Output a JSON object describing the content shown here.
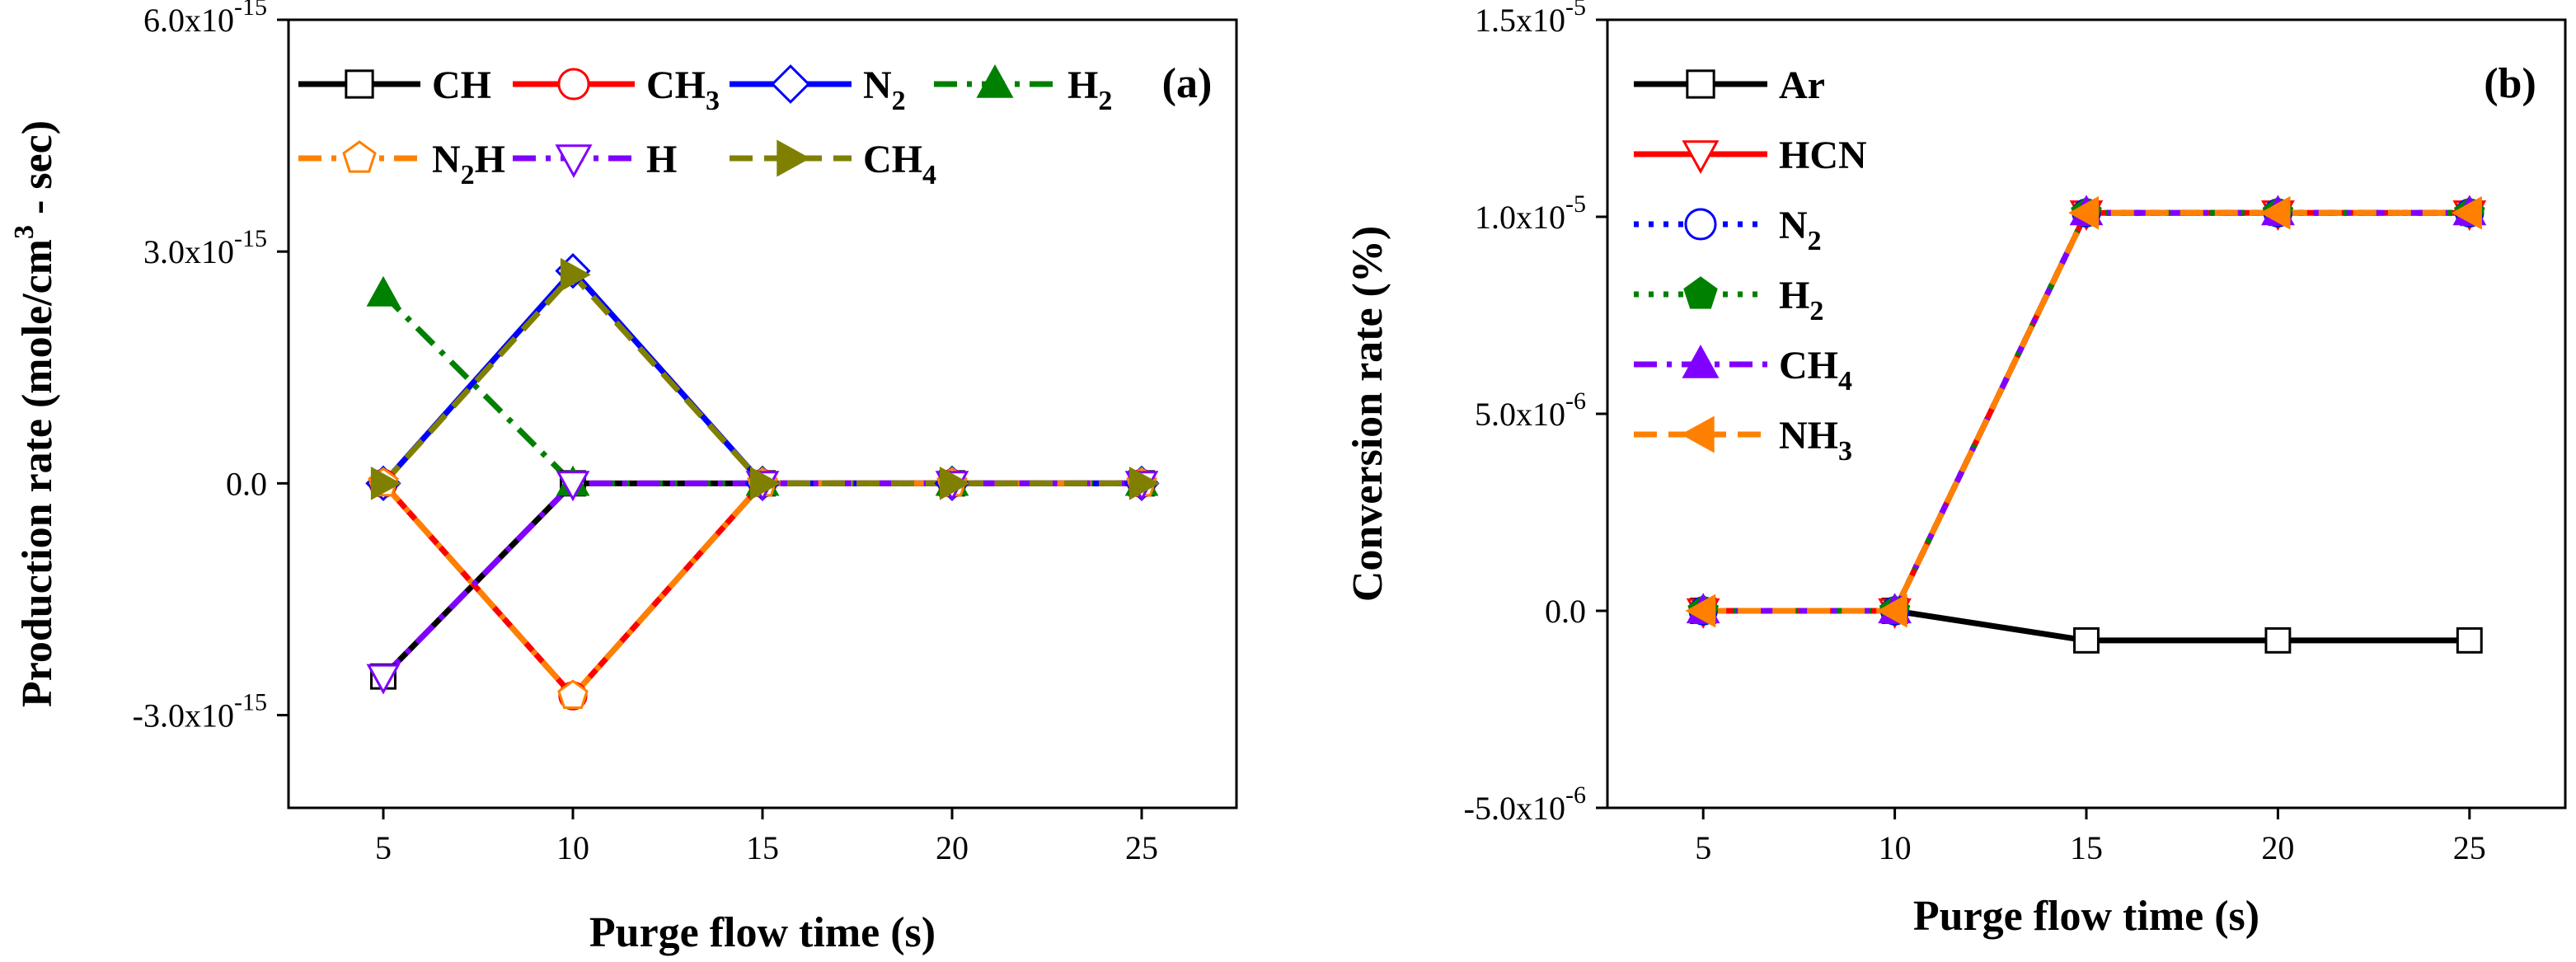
{
  "chart_data": [
    {
      "id": "a",
      "type": "line",
      "panel_label": "(a)",
      "xlabel": "Purge flow time (s)",
      "ylabel": "Production rate (mole/cm",
      "ylabel_sup": "3",
      "ylabel_end": " - sec)",
      "x": [
        5,
        10,
        15,
        20,
        25
      ],
      "xlim": [
        2.5,
        27.5
      ],
      "ylim": [
        -4.2e-15,
        6e-15
      ],
      "x_ticks": [
        5,
        10,
        15,
        20,
        25
      ],
      "x_tick_labels": [
        "5",
        "10",
        "15",
        "20",
        "25"
      ],
      "y_ticks": [
        -3e-15,
        0,
        3e-15,
        6e-15
      ],
      "y_tick_labels": [
        {
          "base": "-3.0x10",
          "exp": "-15"
        },
        {
          "base": "0.0",
          "exp": ""
        },
        {
          "base": "3.0x10",
          "exp": "-15"
        },
        {
          "base": "6.0x10",
          "exp": "-15"
        }
      ],
      "legend": {
        "position": "top",
        "columns": 4
      },
      "series": [
        {
          "name": "CH",
          "sub": "",
          "after": "",
          "values": [
            -2.5e-15,
            0,
            0,
            0,
            0
          ],
          "color": "#000000",
          "marker": "square",
          "dash": "solid",
          "filled": false
        },
        {
          "name": "CH",
          "sub": "3",
          "after": "",
          "values": [
            0,
            -2.75e-15,
            0,
            0,
            0
          ],
          "color": "#ff0000",
          "marker": "circle",
          "dash": "solid",
          "filled": false
        },
        {
          "name": "N",
          "sub": "2",
          "after": "",
          "values": [
            0,
            2.75e-15,
            0,
            0,
            0
          ],
          "color": "#0000ff",
          "marker": "diamond",
          "dash": "solid",
          "filled": false
        },
        {
          "name": "H",
          "sub": "2",
          "after": "",
          "values": [
            2.45e-15,
            0,
            0,
            0,
            0
          ],
          "color": "#008000",
          "marker": "triangle-up",
          "dash": "dashdot",
          "filled": true
        },
        {
          "name": "N",
          "sub": "2",
          "after": "H",
          "values": [
            0,
            -2.75e-15,
            0,
            0,
            0
          ],
          "color": "#ff8000",
          "marker": "pentagon",
          "dash": "dashdot",
          "filled": false
        },
        {
          "name": "H",
          "sub": "",
          "after": "",
          "values": [
            -2.5e-15,
            0,
            0,
            0,
            0
          ],
          "color": "#8000ff",
          "marker": "triangle-down",
          "dash": "dashdot",
          "filled": false
        },
        {
          "name": "CH",
          "sub": "4",
          "after": "",
          "values": [
            0,
            2.7e-15,
            0,
            0,
            0
          ],
          "color": "#808000",
          "marker": "triangle-right",
          "dash": "dash",
          "filled": true
        }
      ]
    },
    {
      "id": "b",
      "type": "line",
      "panel_label": "(b)",
      "xlabel": "Purge flow time (s)",
      "ylabel": "Conversion rate (%)",
      "ylabel_sup": "",
      "ylabel_end": "",
      "x": [
        5,
        10,
        15,
        20,
        25
      ],
      "xlim": [
        2.5,
        27.5
      ],
      "ylim": [
        -5e-06,
        1.5e-05
      ],
      "x_ticks": [
        5,
        10,
        15,
        20,
        25
      ],
      "x_tick_labels": [
        "5",
        "10",
        "15",
        "20",
        "25"
      ],
      "y_ticks": [
        -5e-06,
        0,
        5e-06,
        1e-05,
        1.5e-05
      ],
      "y_tick_labels": [
        {
          "base": "-5.0x10",
          "exp": "-6"
        },
        {
          "base": "0.0",
          "exp": ""
        },
        {
          "base": "5.0x10",
          "exp": "-6"
        },
        {
          "base": "1.0x10",
          "exp": "-5"
        },
        {
          "base": "1.5x10",
          "exp": "-5"
        }
      ],
      "legend": {
        "position": "top-left",
        "columns": 1
      },
      "series": [
        {
          "name": "Ar",
          "sub": "",
          "after": "",
          "values": [
            0,
            0,
            -7.5e-07,
            -7.5e-07,
            -7.5e-07
          ],
          "color": "#000000",
          "marker": "square",
          "dash": "solid",
          "filled": false
        },
        {
          "name": "HCN",
          "sub": "",
          "after": "",
          "values": [
            0,
            0,
            1.01e-05,
            1.01e-05,
            1.01e-05
          ],
          "color": "#ff0000",
          "marker": "triangle-down",
          "dash": "solid",
          "filled": false
        },
        {
          "name": "N",
          "sub": "2",
          "after": "",
          "values": [
            0,
            0,
            1.01e-05,
            1.01e-05,
            1.01e-05
          ],
          "color": "#0000ff",
          "marker": "circle",
          "dash": "dot",
          "filled": false
        },
        {
          "name": "H",
          "sub": "2",
          "after": "",
          "values": [
            0,
            0,
            1.01e-05,
            1.01e-05,
            1.01e-05
          ],
          "color": "#008000",
          "marker": "pentagon",
          "dash": "dot",
          "filled": true
        },
        {
          "name": "CH",
          "sub": "4",
          "after": "",
          "values": [
            0,
            0,
            1.01e-05,
            1.01e-05,
            1.01e-05
          ],
          "color": "#8000ff",
          "marker": "triangle-up",
          "dash": "dashdot",
          "filled": true
        },
        {
          "name": "NH",
          "sub": "3",
          "after": "",
          "values": [
            0,
            0,
            1.01e-05,
            1.01e-05,
            1.01e-05
          ],
          "color": "#ff8000",
          "marker": "triangle-left",
          "dash": "dash",
          "filled": true
        }
      ]
    }
  ]
}
